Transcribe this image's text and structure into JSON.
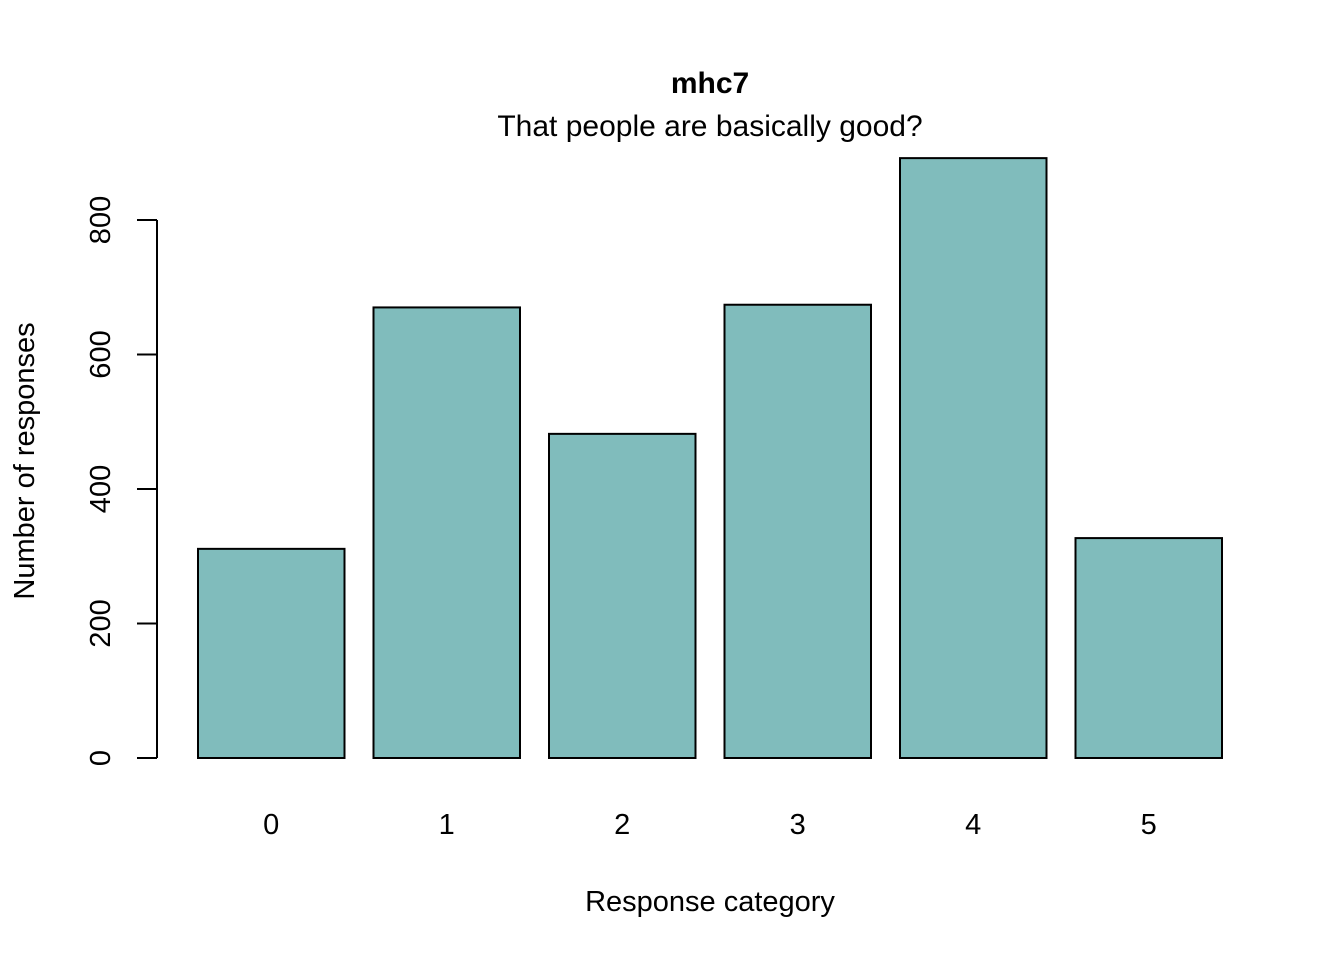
{
  "chart_data": {
    "type": "bar",
    "title": "mhc7",
    "subtitle": "That people are basically good?",
    "xlabel": "Response category",
    "ylabel": "Number of responses",
    "categories": [
      "0",
      "1",
      "2",
      "3",
      "4",
      "5"
    ],
    "values": [
      311,
      670,
      482,
      674,
      892,
      327
    ],
    "ylim": [
      0,
      892
    ],
    "yticks": [
      0,
      200,
      400,
      600,
      800
    ],
    "ytick_labels": [
      "0",
      "200",
      "400",
      "600",
      "800"
    ],
    "grid": false,
    "legend": "none",
    "colors": {
      "bar_fill": "#80BCBC",
      "bar_border": "#000000",
      "axis": "#000000"
    }
  }
}
